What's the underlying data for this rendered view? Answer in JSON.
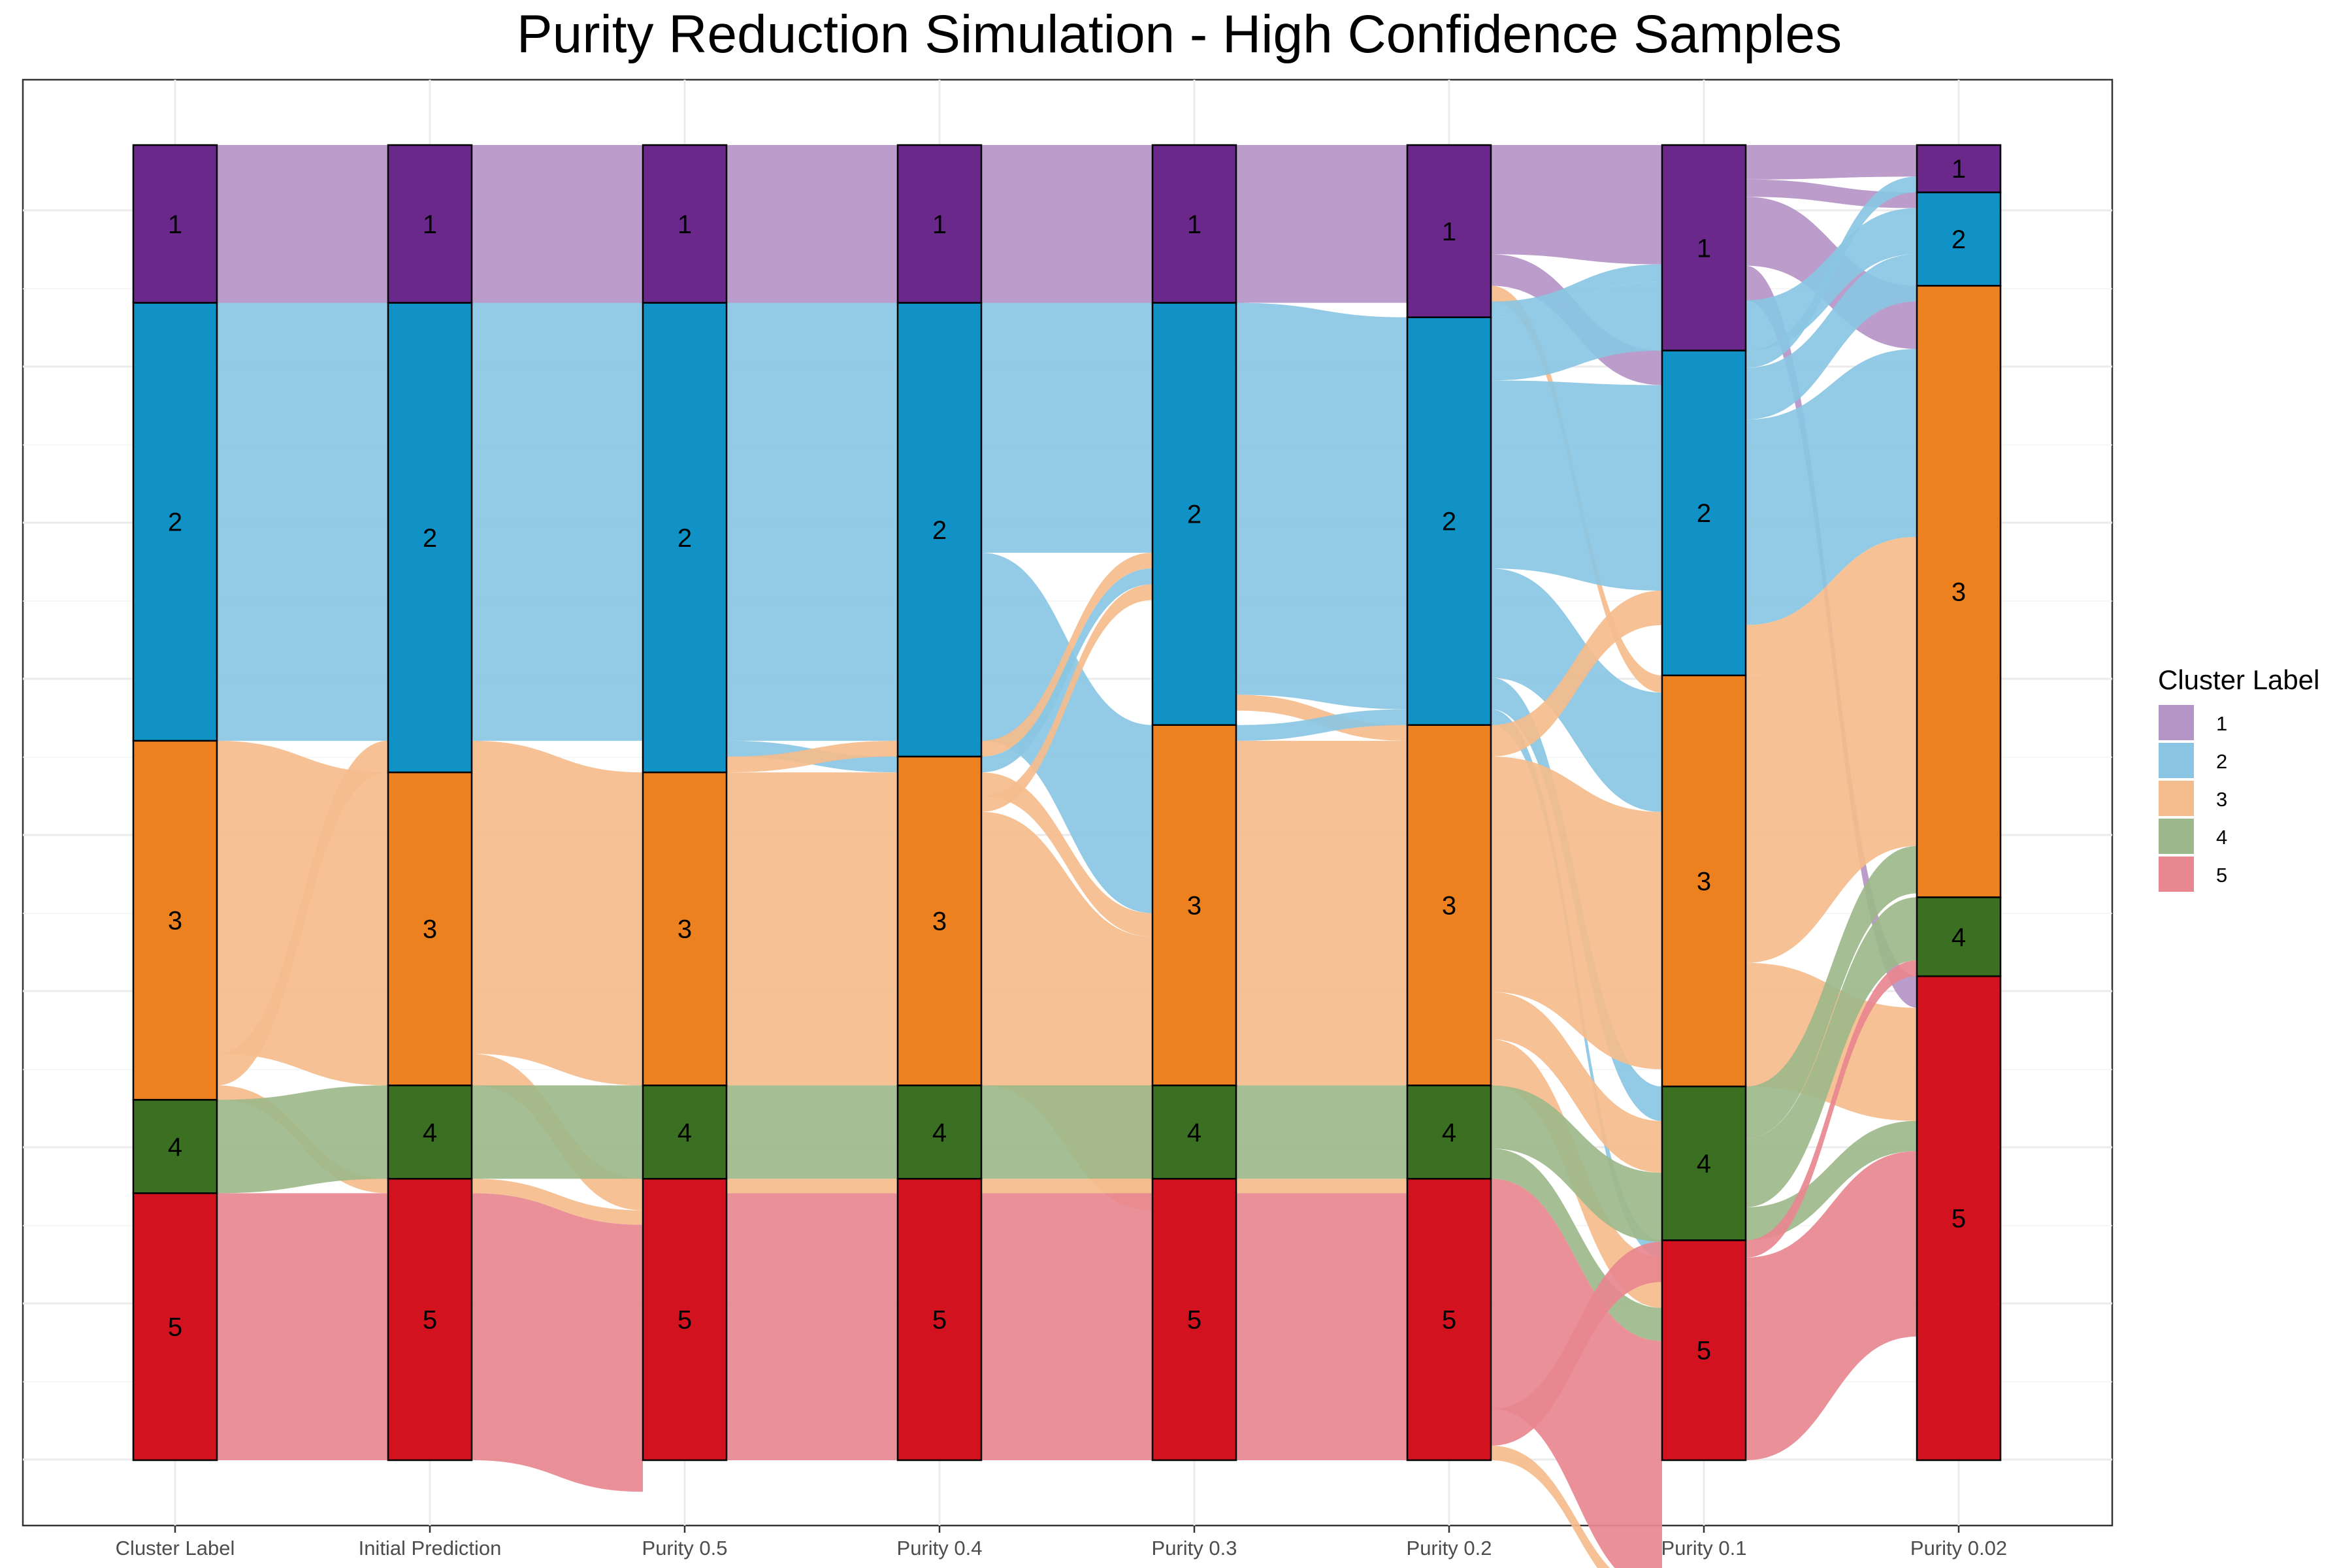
{
  "chart_data": {
    "type": "alluvial",
    "title": "Purity Reduction Simulation - High Confidence Samples",
    "axes": [
      "Cluster Label",
      "Initial Prediction",
      "Purity 0.5",
      "Purity 0.4",
      "Purity 0.3",
      "Purity 0.2",
      "Purity 0.1",
      "Purity 0.02"
    ],
    "grid": true,
    "legend": {
      "title": "Cluster Label",
      "position": "right",
      "items": [
        {
          "label": "1",
          "color": "#b594c6"
        },
        {
          "label": "2",
          "color": "#8ac6e3"
        },
        {
          "label": "3",
          "color": "#f4bc8c"
        },
        {
          "label": "4",
          "color": "#9db88a"
        },
        {
          "label": "5",
          "color": "#e8878f"
        }
      ]
    },
    "node_colors": {
      "1": "#6a288a",
      "2": "#1192c6",
      "3": "#ed801f",
      "4": "#3b7022",
      "5": "#d2121f"
    },
    "flow_colors": {
      "1": "#b594c6",
      "2": "#8ac6e3",
      "3": "#f4bc8c",
      "4": "#9db88a",
      "5": "#e8878f"
    },
    "stratum_sizes": [
      {
        "1": 12.0,
        "2": 33.3,
        "3": 27.3,
        "4": 7.1,
        "5": 20.3
      },
      {
        "1": 12.0,
        "2": 35.7,
        "3": 23.8,
        "4": 7.1,
        "5": 21.4
      },
      {
        "1": 12.0,
        "2": 35.7,
        "3": 23.8,
        "4": 7.1,
        "5": 21.4
      },
      {
        "1": 12.0,
        "2": 34.5,
        "3": 25.0,
        "4": 7.1,
        "5": 21.4
      },
      {
        "1": 12.0,
        "2": 32.1,
        "3": 27.4,
        "4": 7.1,
        "5": 21.4
      },
      {
        "1": 13.1,
        "2": 31.0,
        "3": 27.4,
        "4": 7.1,
        "5": 21.4
      },
      {
        "1": 14.3,
        "2": 22.6,
        "3": 28.6,
        "4": 10.7,
        "5": 15.3
      },
      {
        "1": 3.6,
        "2": 7.1,
        "3": 46.5,
        "4": 6.0,
        "5": 36.8
      }
    ],
    "flows": [
      [
        {
          "from": "1",
          "to": "1",
          "group": "1",
          "value": 12.0
        },
        {
          "from": "2",
          "to": "2",
          "group": "2",
          "value": 33.3
        },
        {
          "from": "3",
          "to": "3",
          "group": "3",
          "value": 23.8
        },
        {
          "from": "3",
          "to": "2",
          "group": "3",
          "value": 2.4
        },
        {
          "from": "3",
          "to": "5",
          "group": "3",
          "value": 1.1
        },
        {
          "from": "4",
          "to": "4",
          "group": "4",
          "value": 7.1
        },
        {
          "from": "5",
          "to": "5",
          "group": "5",
          "value": 20.3
        }
      ],
      [
        {
          "from": "1",
          "to": "1",
          "group": "1",
          "value": 12.0
        },
        {
          "from": "2",
          "to": "2",
          "group": "2",
          "value": 33.3
        },
        {
          "from": "2",
          "to": "3",
          "group": "3",
          "value": 2.4
        },
        {
          "from": "3",
          "to": "3",
          "group": "3",
          "value": 21.4
        },
        {
          "from": "3",
          "to": "5",
          "group": "3",
          "value": 2.4
        },
        {
          "from": "4",
          "to": "4",
          "group": "4",
          "value": 7.1
        },
        {
          "from": "5",
          "to": "5",
          "group": "3",
          "value": 1.1
        },
        {
          "from": "5",
          "to": "5",
          "group": "5",
          "value": 20.3
        }
      ],
      [
        {
          "from": "1",
          "to": "1",
          "group": "1",
          "value": 12.0
        },
        {
          "from": "2",
          "to": "2",
          "group": "2",
          "value": 33.3
        },
        {
          "from": "2",
          "to": "3",
          "group": "2",
          "value": 1.2
        },
        {
          "from": "2",
          "to": "2",
          "group": "3",
          "value": 1.2
        },
        {
          "from": "3",
          "to": "3",
          "group": "3",
          "value": 23.8
        },
        {
          "from": "4",
          "to": "4",
          "group": "4",
          "value": 7.1
        },
        {
          "from": "5",
          "to": "5",
          "group": "3",
          "value": 1.1
        },
        {
          "from": "5",
          "to": "5",
          "group": "5",
          "value": 20.3
        }
      ],
      [
        {
          "from": "1",
          "to": "1",
          "group": "1",
          "value": 12.0
        },
        {
          "from": "2",
          "to": "2",
          "group": "2",
          "value": 19.0
        },
        {
          "from": "2",
          "to": "3",
          "group": "2",
          "value": 14.3
        },
        {
          "from": "2",
          "to": "2",
          "group": "3",
          "value": 1.2
        },
        {
          "from": "3",
          "to": "2",
          "group": "2",
          "value": 1.2
        },
        {
          "from": "3",
          "to": "3",
          "group": "3",
          "value": 1.8
        },
        {
          "from": "3",
          "to": "2",
          "group": "3",
          "value": 1.2
        },
        {
          "from": "3",
          "to": "3",
          "group": "3",
          "value": 20.8
        },
        {
          "from": "4",
          "to": "4",
          "group": "4",
          "value": 7.1
        },
        {
          "from": "5",
          "to": "5",
          "group": "3",
          "value": 1.1
        },
        {
          "from": "5",
          "to": "5",
          "group": "5",
          "value": 20.3
        }
      ],
      [
        {
          "from": "1",
          "to": "1",
          "group": "1",
          "value": 12.0
        },
        {
          "from": "2",
          "to": "2",
          "group": "2",
          "value": 29.8
        },
        {
          "from": "2",
          "to": "3",
          "group": "3",
          "value": 1.2
        },
        {
          "from": "3",
          "to": "2",
          "group": "2",
          "value": 1.2
        },
        {
          "from": "3",
          "to": "3",
          "group": "3",
          "value": 26.2
        },
        {
          "from": "4",
          "to": "4",
          "group": "4",
          "value": 7.1
        },
        {
          "from": "5",
          "to": "5",
          "group": "3",
          "value": 1.1
        },
        {
          "from": "5",
          "to": "5",
          "group": "5",
          "value": 20.3
        }
      ],
      [
        {
          "from": "1",
          "to": "1",
          "group": "1",
          "value": 8.3
        },
        {
          "from": "1",
          "to": "2",
          "group": "1",
          "value": 2.4
        },
        {
          "from": "1",
          "to": "3",
          "group": "3",
          "value": 1.2
        },
        {
          "from": "1",
          "to": "1",
          "group": "2",
          "value": 1.2
        },
        {
          "from": "2",
          "to": "1",
          "group": "2",
          "value": 4.8
        },
        {
          "from": "2",
          "to": "2",
          "group": "2",
          "value": 14.3
        },
        {
          "from": "2",
          "to": "3",
          "group": "2",
          "value": 8.3
        },
        {
          "from": "2",
          "to": "4",
          "group": "2",
          "value": 2.4
        },
        {
          "from": "2",
          "to": "5",
          "group": "2",
          "value": 1.2
        },
        {
          "from": "3",
          "to": "2",
          "group": "3",
          "value": 2.4
        },
        {
          "from": "3",
          "to": "3",
          "group": "3",
          "value": 17.9
        },
        {
          "from": "3",
          "to": "4",
          "group": "3",
          "value": 3.6
        },
        {
          "from": "3",
          "to": "5",
          "group": "3",
          "value": 3.5
        },
        {
          "from": "4",
          "to": "4",
          "group": "4",
          "value": 4.8
        },
        {
          "from": "4",
          "to": "5",
          "group": "4",
          "value": 2.3
        },
        {
          "from": "5",
          "to": "5",
          "group": "5",
          "value": 17.5
        },
        {
          "from": "5",
          "to": "4",
          "group": "5",
          "value": 2.8
        },
        {
          "from": "5",
          "to": "5",
          "group": "3",
          "value": 1.1
        }
      ],
      [
        {
          "from": "1",
          "to": "1",
          "group": "1",
          "value": 2.4
        },
        {
          "from": "1",
          "to": "2",
          "group": "1",
          "value": 1.2
        },
        {
          "from": "1",
          "to": "3",
          "group": "1",
          "value": 4.8
        },
        {
          "from": "1",
          "to": "5",
          "group": "1",
          "value": 2.4
        },
        {
          "from": "1",
          "to": "2",
          "group": "2",
          "value": 3.5
        },
        {
          "from": "2",
          "to": "1",
          "group": "2",
          "value": 1.2
        },
        {
          "from": "2",
          "to": "2",
          "group": "2",
          "value": 3.6
        },
        {
          "from": "2",
          "to": "3",
          "group": "2",
          "value": 14.3
        },
        {
          "from": "2",
          "to": "3",
          "group": "3",
          "value": 3.5
        },
        {
          "from": "3",
          "to": "3",
          "group": "3",
          "value": 20.0
        },
        {
          "from": "3",
          "to": "5",
          "group": "3",
          "value": 8.6
        },
        {
          "from": "4",
          "to": "3",
          "group": "4",
          "value": 3.6
        },
        {
          "from": "4",
          "to": "4",
          "group": "4",
          "value": 4.8
        },
        {
          "from": "4",
          "to": "5",
          "group": "4",
          "value": 2.3
        },
        {
          "from": "5",
          "to": "4",
          "group": "5",
          "value": 1.2
        },
        {
          "from": "5",
          "to": "5",
          "group": "5",
          "value": 14.1
        }
      ]
    ]
  }
}
